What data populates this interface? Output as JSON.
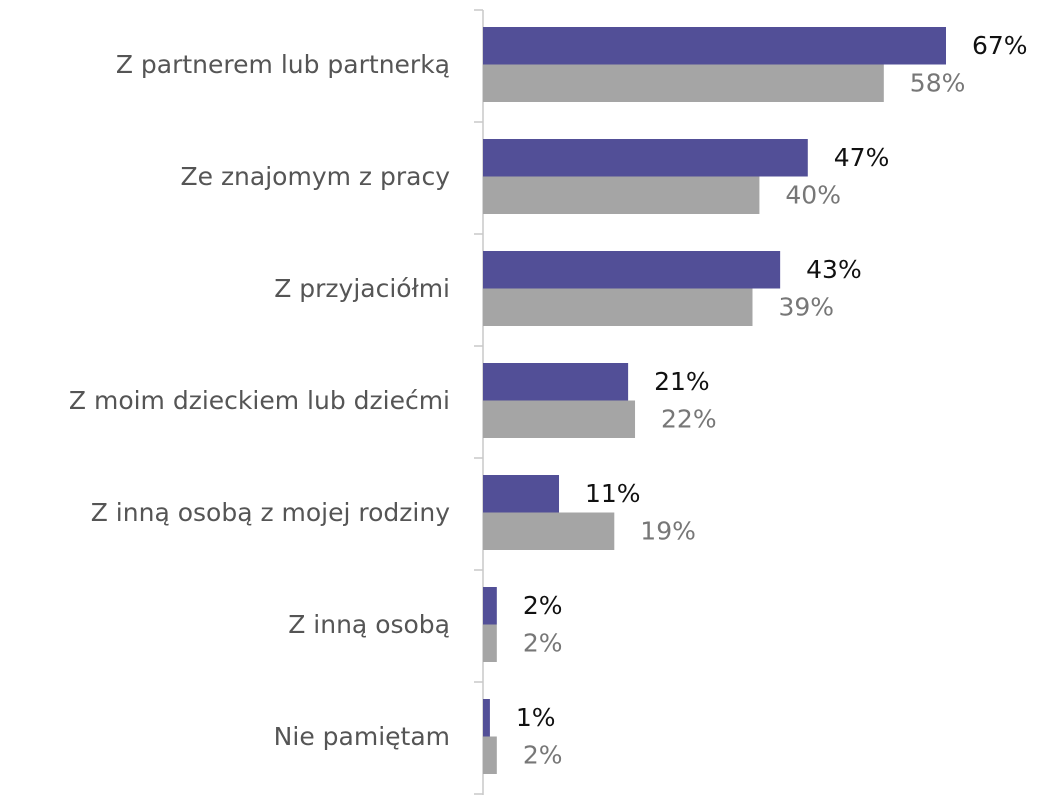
{
  "chart_data": {
    "type": "bar",
    "orientation": "horizontal",
    "categories": [
      "Z partnerem lub partnerką",
      "Ze znajomym z pracy",
      "Z przyjaciółmi",
      "Z moim dzieckiem lub dziećmi",
      "Z inną osobą z mojej rodziny",
      "Z inną osobą",
      "Nie pamiętam"
    ],
    "series": [
      {
        "color": "#524f97",
        "label_color": "#111111",
        "values": [
          67,
          47,
          43,
          21,
          11,
          2,
          1
        ],
        "value_labels": [
          "67%",
          "47%",
          "43%",
          "21%",
          "11%",
          "2%",
          "1%"
        ]
      },
      {
        "color": "#a5a5a5",
        "label_color": "#777777",
        "values": [
          58,
          40,
          39,
          22,
          19,
          2,
          2
        ],
        "value_labels": [
          "58%",
          "40%",
          "39%",
          "22%",
          "19%",
          "2%",
          "2%"
        ]
      }
    ]
  }
}
